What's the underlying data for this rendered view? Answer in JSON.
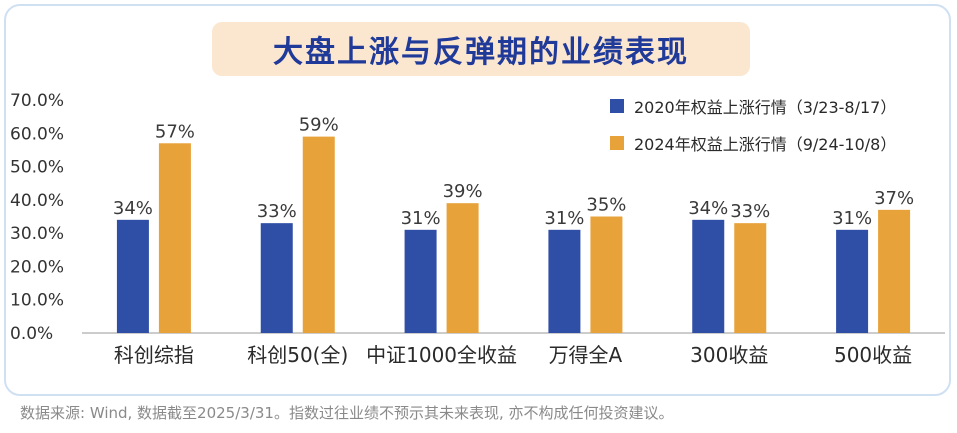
{
  "title": "大盘上涨与反弹期的业绩表现",
  "footnote": "数据来源: Wind, 数据截至2025/3/31。指数过往业绩不预示其未来表现, 亦不构成任何投资建议。",
  "colors": {
    "series_2020": "#2f4fa6",
    "series_2024": "#e8a23a",
    "title_bg": "#fbe7cf",
    "title_text": "#203a9a"
  },
  "chart_data": {
    "type": "bar",
    "categories": [
      "科创综指",
      "科创50(全)",
      "中证1000全收益",
      "万得全A",
      "300收益",
      "500收益"
    ],
    "series": [
      {
        "name": "2020年权益上涨行情（3/23-8/17）",
        "values": [
          34,
          33,
          31,
          31,
          34,
          31
        ],
        "labels": [
          "34%",
          "33%",
          "31%",
          "31%",
          "34%",
          "31%"
        ]
      },
      {
        "name": "2024年权益上涨行情（9/24-10/8）",
        "values": [
          57,
          59,
          39,
          35,
          33,
          37
        ],
        "labels": [
          "57%",
          "59%",
          "39%",
          "35%",
          "33%",
          "37%"
        ]
      }
    ],
    "yticks": [
      "0.0%",
      "10.0%",
      "20.0%",
      "30.0%",
      "40.0%",
      "50.0%",
      "60.0%",
      "70.0%"
    ],
    "ylim": [
      0,
      70
    ],
    "legend": "top-right",
    "grid": false
  }
}
